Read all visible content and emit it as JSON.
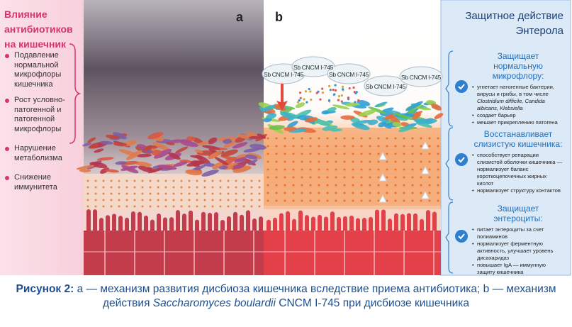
{
  "left_panel": {
    "title": "Влияние антибиотиков на кишечник",
    "items": [
      "Подавление нормальной микрофлоры кишечника",
      "Рост условно-патогенной и патогенной микрофлоры",
      "Нарушение метаболизма",
      "Снижение иммунитета"
    ]
  },
  "panel_labels": [
    "a",
    "b"
  ],
  "probiotic_labels": [
    "Sb CNCM I-745",
    "Sb CNCM I-745",
    "Sb CNCM I-745",
    "Sb CNCM I-745",
    "Sb CNCM I-745"
  ],
  "right_panel": {
    "title": "Защитное действие Энтерола",
    "sections": [
      {
        "heading": "Защищает нормальную микрофлору:",
        "bullets": [
          {
            "text": "угнетает патогенные бактерии, вирусы и грибы, в том числе",
            "species": "Clostridium difficile, Candida albicans, Klebsiella"
          },
          "создает барьер",
          "мешает прикреплению патогена"
        ]
      },
      {
        "heading": "Восстанавливает слизистую кишечника:",
        "bullets": [
          "способствует репарации слизистой оболочки кишечника — нормализует баланс короткоцепочечных жирных кислот",
          "нормализует структуру контактов"
        ]
      },
      {
        "heading": "Защищает энтероциты:",
        "bullets": [
          "питает энтероциты за счет полиаминов",
          "нормализует ферментную активность, улучшает уровень дисахаридаз",
          "повышает IgA — иммунную защиту кишечника"
        ]
      }
    ]
  },
  "caption": {
    "label": "Рисунок 2:",
    "text_before": "а — механизм развития дисбиоза кишечника вследствие приема антибиотика; b — механизм действия",
    "species": "Saccharomyces boulardii",
    "text_after": "CNCM I-745 при дисбиозе кишечника"
  }
}
